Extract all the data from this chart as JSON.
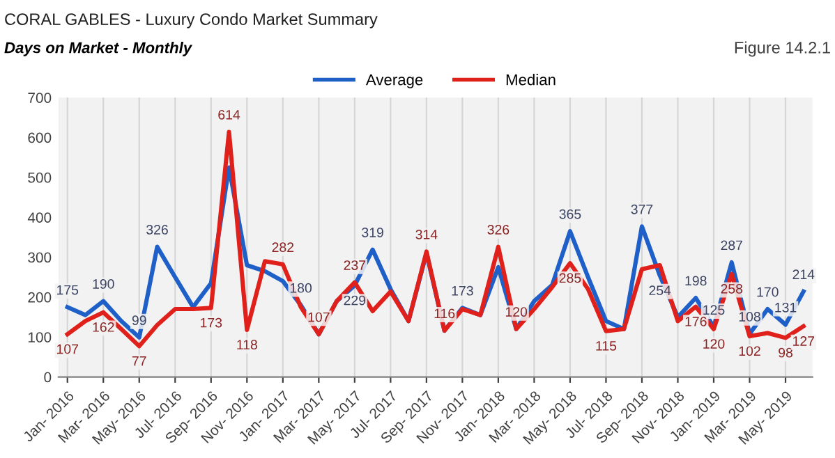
{
  "chart_data": {
    "type": "line",
    "title": "CORAL GABLES - Luxury Condo Market Summary",
    "subtitle": "Days on Market - Monthly",
    "annotations": [
      "Figure 14.2.1"
    ],
    "categories": [
      "Jan- 2016",
      null,
      "Mar- 2016",
      null,
      "May- 2016",
      null,
      "Jul- 2016",
      null,
      "Sep- 2016",
      null,
      "Nov- 2016",
      null,
      "Jan- 2017",
      null,
      "Mar- 2017",
      null,
      "May- 2017",
      null,
      "Jul- 2017",
      null,
      "Sep- 2017",
      null,
      "Nov- 2017",
      null,
      "Jan- 2018",
      null,
      "Mar- 2018",
      null,
      "May- 2018",
      null,
      "Jul- 2018",
      null,
      "Sep- 2018",
      null,
      "Nov- 2018",
      null,
      "Jan- 2019",
      null,
      "Mar- 2019",
      null,
      "May- 2019",
      null
    ],
    "series": [
      {
        "name": "Average",
        "color": "#1f5fc8",
        "values": [
          175,
          155,
          190,
          140,
          99,
          326,
          250,
          175,
          235,
          525,
          280,
          265,
          240,
          180,
          107,
          190,
          229,
          319,
          220,
          140,
          310,
          116,
          173,
          155,
          275,
          120,
          190,
          230,
          365,
          250,
          140,
          120,
          377,
          254,
          150,
          198,
          125,
          287,
          108,
          170,
          131,
          214
        ],
        "value_labels": [
          "175",
          null,
          "190",
          null,
          "99",
          "326",
          null,
          null,
          null,
          null,
          null,
          null,
          null,
          "180",
          null,
          null,
          "229",
          "319",
          null,
          null,
          null,
          null,
          "173",
          null,
          null,
          null,
          null,
          null,
          "365",
          null,
          null,
          null,
          "377",
          "254",
          null,
          "198",
          "125",
          "287",
          "108",
          "170",
          "131",
          "214"
        ]
      },
      {
        "name": "Median",
        "color": "#e0201b",
        "values": [
          107,
          140,
          162,
          120,
          77,
          130,
          170,
          170,
          173,
          614,
          118,
          290,
          282,
          175,
          107,
          190,
          237,
          165,
          214,
          140,
          314,
          116,
          170,
          155,
          326,
          120,
          170,
          225,
          285,
          220,
          115,
          120,
          270,
          280,
          140,
          176,
          120,
          258,
          102,
          110,
          98,
          127
        ],
        "value_labels": [
          "107",
          null,
          "162",
          null,
          "77",
          null,
          null,
          null,
          "173",
          "614",
          "118",
          null,
          "282",
          null,
          "107",
          null,
          "237",
          null,
          null,
          null,
          "314",
          "116",
          null,
          null,
          "326",
          "120",
          null,
          null,
          "285",
          null,
          "115",
          null,
          null,
          null,
          null,
          "176",
          "120",
          "258",
          "102",
          null,
          "98",
          "127"
        ]
      }
    ],
    "ylim": [
      0,
      700
    ],
    "yticks": [
      0,
      100,
      200,
      300,
      400,
      500,
      600,
      700
    ],
    "grid": "x",
    "legend": "top",
    "marker": "none",
    "line_style": "solid"
  }
}
